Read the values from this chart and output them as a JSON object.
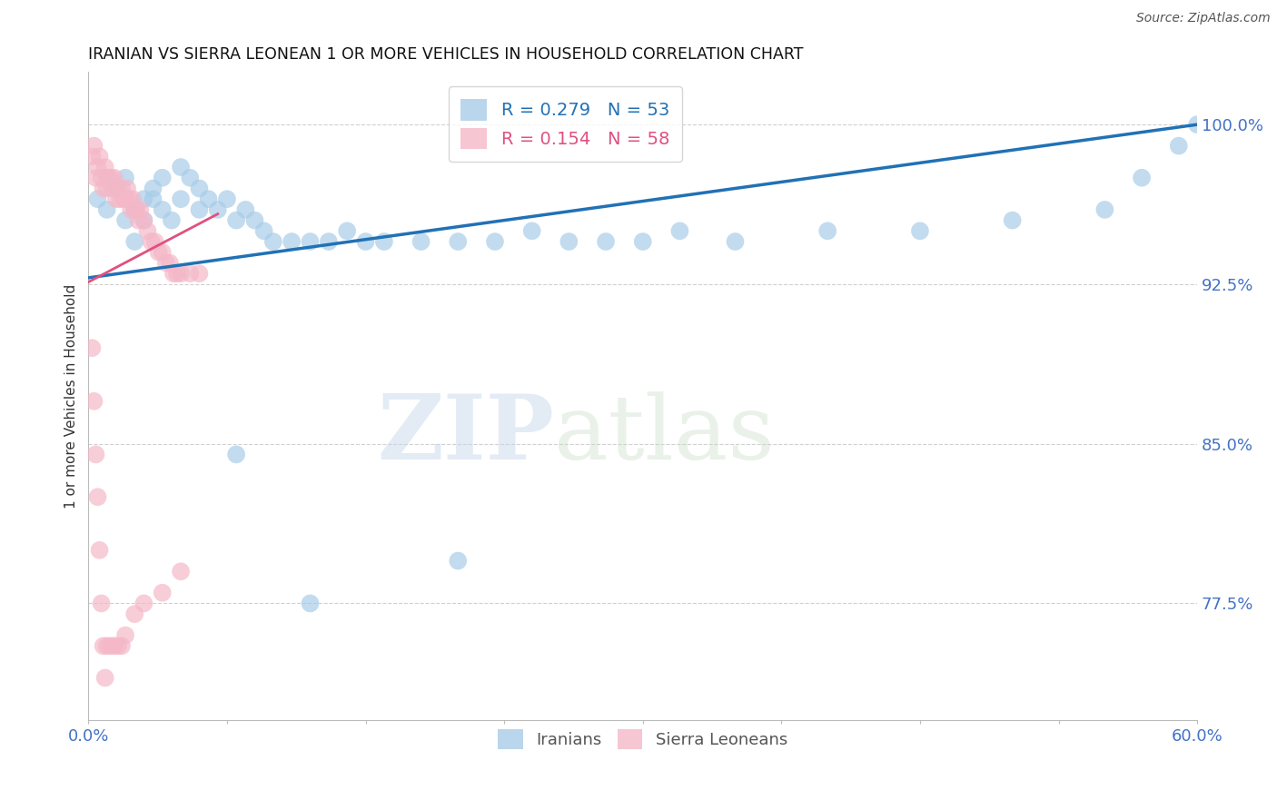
{
  "title": "IRANIAN VS SIERRA LEONEAN 1 OR MORE VEHICLES IN HOUSEHOLD CORRELATION CHART",
  "source": "Source: ZipAtlas.com",
  "ylabel": "1 or more Vehicles in Household",
  "watermark_zip": "ZIP",
  "watermark_atlas": "atlas",
  "legend_blue_R": 0.279,
  "legend_blue_N": 53,
  "legend_pink_R": 0.154,
  "legend_pink_N": 58,
  "label_iranians": "Iranians",
  "label_sierra": "Sierra Leoneans",
  "xmin": 0.0,
  "xmax": 0.6,
  "ymin": 0.72,
  "ymax": 1.025,
  "yticks": [
    0.775,
    0.85,
    0.925,
    1.0
  ],
  "ytick_labels": [
    "77.5%",
    "85.0%",
    "92.5%",
    "100.0%"
  ],
  "xticks": [
    0.0,
    0.075,
    0.15,
    0.225,
    0.3,
    0.375,
    0.45,
    0.525,
    0.6
  ],
  "xtick_labels": [
    "0.0%",
    "",
    "",
    "",
    "",
    "",
    "",
    "",
    "60.0%"
  ],
  "blue_color": "#a8cce8",
  "pink_color": "#f4b8c8",
  "trend_blue_color": "#2171b5",
  "trend_pink_color": "#e05080",
  "grid_color": "#d0d0d0",
  "axis_color": "#4472c4",
  "iranians_x": [
    0.005,
    0.01,
    0.01,
    0.015,
    0.02,
    0.02,
    0.025,
    0.025,
    0.03,
    0.03,
    0.035,
    0.035,
    0.04,
    0.04,
    0.045,
    0.05,
    0.05,
    0.055,
    0.06,
    0.06,
    0.065,
    0.07,
    0.075,
    0.08,
    0.085,
    0.09,
    0.095,
    0.1,
    0.11,
    0.12,
    0.13,
    0.14,
    0.15,
    0.16,
    0.18,
    0.2,
    0.22,
    0.24,
    0.26,
    0.28,
    0.3,
    0.32,
    0.35,
    0.4,
    0.45,
    0.5,
    0.55,
    0.57,
    0.59,
    0.6,
    0.08,
    0.12,
    0.2
  ],
  "iranians_y": [
    0.965,
    0.975,
    0.96,
    0.97,
    0.975,
    0.955,
    0.96,
    0.945,
    0.965,
    0.955,
    0.965,
    0.97,
    0.96,
    0.975,
    0.955,
    0.98,
    0.965,
    0.975,
    0.96,
    0.97,
    0.965,
    0.96,
    0.965,
    0.955,
    0.96,
    0.955,
    0.95,
    0.945,
    0.945,
    0.945,
    0.945,
    0.95,
    0.945,
    0.945,
    0.945,
    0.945,
    0.945,
    0.95,
    0.945,
    0.945,
    0.945,
    0.95,
    0.945,
    0.95,
    0.95,
    0.955,
    0.96,
    0.975,
    0.99,
    1.0,
    0.845,
    0.775,
    0.795
  ],
  "sierra_x": [
    0.002,
    0.003,
    0.004,
    0.005,
    0.006,
    0.007,
    0.008,
    0.009,
    0.01,
    0.011,
    0.012,
    0.013,
    0.014,
    0.015,
    0.016,
    0.017,
    0.018,
    0.019,
    0.02,
    0.021,
    0.022,
    0.023,
    0.024,
    0.025,
    0.026,
    0.027,
    0.028,
    0.03,
    0.032,
    0.034,
    0.036,
    0.038,
    0.04,
    0.042,
    0.044,
    0.046,
    0.048,
    0.05,
    0.055,
    0.06,
    0.002,
    0.003,
    0.004,
    0.005,
    0.006,
    0.007,
    0.008,
    0.009,
    0.01,
    0.012,
    0.014,
    0.016,
    0.018,
    0.02,
    0.025,
    0.03,
    0.04,
    0.05
  ],
  "sierra_y": [
    0.985,
    0.99,
    0.975,
    0.98,
    0.985,
    0.975,
    0.97,
    0.98,
    0.97,
    0.975,
    0.975,
    0.97,
    0.975,
    0.965,
    0.97,
    0.965,
    0.97,
    0.965,
    0.965,
    0.97,
    0.965,
    0.96,
    0.965,
    0.96,
    0.96,
    0.955,
    0.96,
    0.955,
    0.95,
    0.945,
    0.945,
    0.94,
    0.94,
    0.935,
    0.935,
    0.93,
    0.93,
    0.93,
    0.93,
    0.93,
    0.895,
    0.87,
    0.845,
    0.825,
    0.8,
    0.775,
    0.755,
    0.74,
    0.755,
    0.755,
    0.755,
    0.755,
    0.755,
    0.76,
    0.77,
    0.775,
    0.78,
    0.79
  ],
  "blue_trend_x0": 0.0,
  "blue_trend_y0": 0.928,
  "blue_trend_x1": 0.6,
  "blue_trend_y1": 1.0,
  "pink_trend_x0": 0.0,
  "pink_trend_y0": 0.928,
  "pink_trend_x1": 0.055,
  "pink_trend_y1": 0.955
}
